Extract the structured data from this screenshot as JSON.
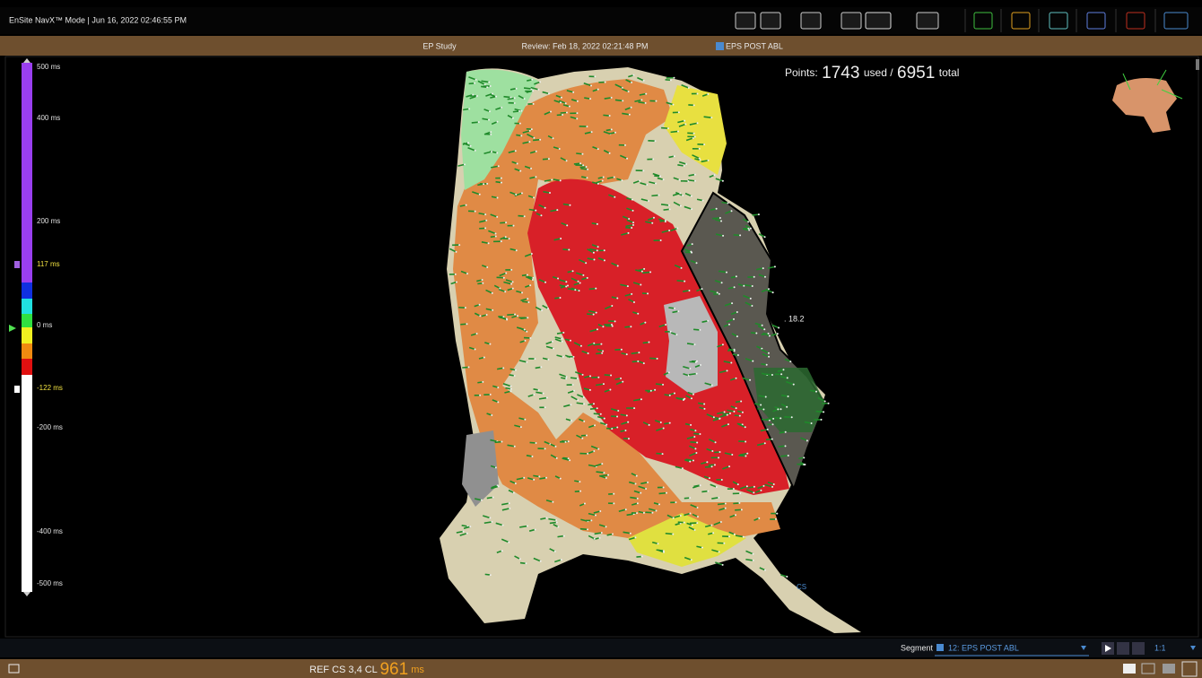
{
  "header": {
    "title": "EnSite NavX™ Mode |  Jun 16, 2022 02:46:55 PM"
  },
  "subheader": {
    "study": "EP Study",
    "review": "Review: Feb 18, 2022 02:21:48 PM",
    "map": "EPS POST ABL"
  },
  "scale": {
    "labels": [
      "500 ms",
      "400 ms",
      "200 ms",
      "117 ms",
      "0 ms",
      "-122 ms",
      "-200 ms",
      "-400 ms",
      "-500 ms"
    ]
  },
  "points": {
    "label": "Points:",
    "used": "1743",
    "used_label": "used /",
    "total": "6951",
    "total_label": "total"
  },
  "annotation": ". 18.2",
  "catheter_label": "CS",
  "footer": {
    "segment_label": "Segment",
    "segment_value": "12: EPS POST ABL",
    "zoom": "1:1",
    "ref": "REF CS 3,4 CL",
    "cl": "961",
    "unit": "ms"
  }
}
